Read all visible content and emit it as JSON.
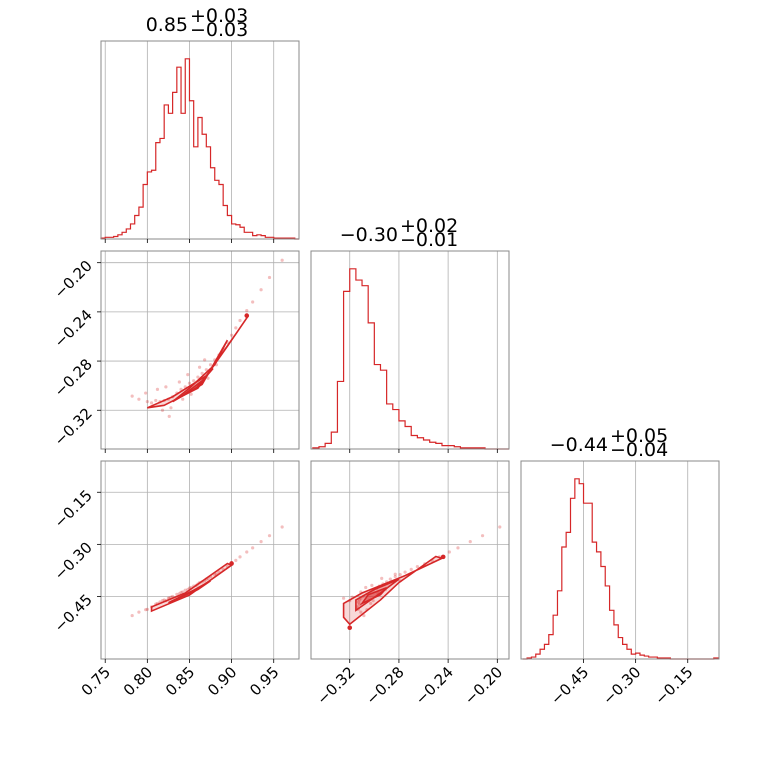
{
  "chart_data": {
    "type": "corner",
    "color": "#d62728",
    "parameters": [
      {
        "title_main": "0.85",
        "title_plus": "+0.03",
        "title_minus": "−0.03",
        "range": [
          0.745,
          0.98
        ],
        "ticks": [
          0.75,
          0.8,
          0.85,
          0.9,
          0.95
        ],
        "ticklabels": [
          "0.75",
          "0.80",
          "0.85",
          "0.90",
          "0.95"
        ],
        "hist_x": [
          0.745,
          0.75,
          0.755,
          0.76,
          0.765,
          0.77,
          0.775,
          0.78,
          0.785,
          0.79,
          0.795,
          0.8,
          0.805,
          0.81,
          0.815,
          0.82,
          0.825,
          0.83,
          0.835,
          0.84,
          0.845,
          0.85,
          0.855,
          0.86,
          0.865,
          0.87,
          0.875,
          0.88,
          0.885,
          0.89,
          0.895,
          0.9,
          0.905,
          0.91,
          0.915,
          0.92,
          0.925,
          0.93,
          0.935,
          0.94,
          0.945,
          0.95,
          0.955,
          0.96,
          0.965,
          0.97,
          0.975
        ],
        "hist_counts": [
          1,
          2,
          2,
          3,
          5,
          8,
          12,
          18,
          28,
          38,
          65,
          80,
          82,
          115,
          120,
          160,
          150,
          175,
          205,
          150,
          215,
          165,
          110,
          145,
          125,
          110,
          85,
          70,
          65,
          40,
          28,
          18,
          17,
          14,
          8,
          8,
          4,
          5,
          4,
          2,
          2,
          1,
          1,
          1,
          1,
          1,
          0
        ]
      },
      {
        "title_main": "−0.30",
        "title_plus": "+0.02",
        "title_minus": "−0.01",
        "range": [
          -0.3515,
          -0.1905
        ],
        "ticks": [
          -0.32,
          -0.28,
          -0.24,
          -0.2
        ],
        "ticklabels": [
          "−0.32",
          "−0.28",
          "−0.24",
          "−0.20"
        ],
        "hist_x": [
          -0.35,
          -0.345,
          -0.34,
          -0.335,
          -0.33,
          -0.325,
          -0.32,
          -0.315,
          -0.31,
          -0.305,
          -0.3,
          -0.295,
          -0.29,
          -0.285,
          -0.28,
          -0.275,
          -0.27,
          -0.265,
          -0.26,
          -0.255,
          -0.25,
          -0.245,
          -0.24,
          -0.235,
          -0.23,
          -0.225,
          -0.22,
          -0.215,
          -0.21,
          -0.205,
          -0.2,
          -0.195
        ],
        "hist_counts": [
          1,
          2,
          5,
          15,
          60,
          140,
          160,
          150,
          145,
          112,
          75,
          70,
          40,
          35,
          25,
          20,
          12,
          10,
          8,
          6,
          5,
          3,
          3,
          2,
          1,
          1,
          1,
          1,
          0,
          0,
          0,
          0
        ]
      },
      {
        "title_main": "−0.44",
        "title_plus": "+0.05",
        "title_minus": "−0.04",
        "range": [
          -0.63,
          -0.06
        ],
        "ticks": [
          -0.45,
          -0.3,
          -0.15
        ],
        "ticklabels": [
          "−0.45",
          "−0.30",
          "−0.15"
        ],
        "hist_x": [
          -0.625,
          -0.6125,
          -0.6,
          -0.5875,
          -0.575,
          -0.5625,
          -0.55,
          -0.5375,
          -0.525,
          -0.5125,
          -0.5,
          -0.4875,
          -0.475,
          -0.4625,
          -0.45,
          -0.4375,
          -0.425,
          -0.4125,
          -0.4,
          -0.3875,
          -0.375,
          -0.3625,
          -0.35,
          -0.3375,
          -0.325,
          -0.3125,
          -0.3,
          -0.2875,
          -0.275,
          -0.2625,
          -0.25,
          -0.2375,
          -0.225,
          -0.2125,
          -0.2,
          -0.1875,
          -0.175,
          -0.1625,
          -0.15,
          -0.1375,
          -0.125,
          -0.1125,
          -0.1,
          -0.0875,
          -0.075
        ],
        "hist_counts": [
          0,
          1,
          2,
          5,
          10,
          15,
          25,
          45,
          70,
          115,
          130,
          165,
          185,
          180,
          160,
          160,
          120,
          110,
          95,
          75,
          50,
          35,
          22,
          15,
          10,
          5,
          6,
          4,
          3,
          2,
          2,
          1,
          1,
          1,
          0,
          0,
          0,
          0,
          0,
          0,
          0,
          0,
          0,
          0,
          1
        ]
      }
    ],
    "scatter_points": [
      [
        0.782,
        -0.3085,
        -0.505
      ],
      [
        0.79,
        -0.311,
        -0.495
      ],
      [
        0.8,
        -0.313,
        -0.487
      ],
      [
        0.805,
        -0.314,
        -0.48
      ],
      [
        0.81,
        -0.312,
        -0.472
      ],
      [
        0.815,
        -0.313,
        -0.466
      ],
      [
        0.82,
        -0.312,
        -0.46
      ],
      [
        0.825,
        -0.311,
        -0.455
      ],
      [
        0.83,
        -0.309,
        -0.45
      ],
      [
        0.835,
        -0.306,
        -0.444
      ],
      [
        0.84,
        -0.303,
        -0.438
      ],
      [
        0.845,
        -0.301,
        -0.432
      ],
      [
        0.85,
        -0.298,
        -0.426
      ],
      [
        0.855,
        -0.296,
        -0.42
      ],
      [
        0.86,
        -0.293,
        -0.414
      ],
      [
        0.865,
        -0.29,
        -0.408
      ],
      [
        0.87,
        -0.287,
        -0.4
      ],
      [
        0.875,
        -0.283,
        -0.393
      ],
      [
        0.88,
        -0.279,
        -0.387
      ],
      [
        0.885,
        -0.275,
        -0.38
      ],
      [
        0.89,
        -0.27,
        -0.372
      ],
      [
        0.895,
        -0.265,
        -0.364
      ],
      [
        0.9,
        -0.259,
        -0.356
      ],
      [
        0.905,
        -0.253,
        -0.346
      ],
      [
        0.91,
        -0.247,
        -0.336
      ],
      [
        0.918,
        -0.239,
        -0.322
      ],
      [
        0.925,
        -0.232,
        -0.31
      ],
      [
        0.935,
        -0.222,
        -0.292
      ],
      [
        0.945,
        -0.212,
        -0.275
      ],
      [
        0.96,
        -0.198,
        -0.25
      ],
      [
        0.812,
        -0.303,
        -0.47
      ],
      [
        0.828,
        -0.318,
        -0.452
      ],
      [
        0.848,
        -0.291,
        -0.43
      ],
      [
        0.838,
        -0.297,
        -0.442
      ],
      [
        0.862,
        -0.285,
        -0.41
      ],
      [
        0.872,
        -0.294,
        -0.398
      ],
      [
        0.822,
        -0.301,
        -0.462
      ],
      [
        0.798,
        -0.306,
        -0.488
      ],
      [
        0.868,
        -0.279,
        -0.405
      ],
      [
        0.882,
        -0.283,
        -0.386
      ],
      [
        0.852,
        -0.307,
        -0.424
      ],
      [
        0.842,
        -0.311,
        -0.437
      ],
      [
        0.818,
        -0.32,
        -0.462
      ],
      [
        0.826,
        -0.325,
        -0.455
      ],
      [
        0.858,
        -0.302,
        -0.418
      ]
    ],
    "contours": {
      "p0_p1": [
        [
          [
            0.82,
            -0.316
          ],
          [
            0.86,
            -0.302
          ],
          [
            0.895,
            -0.268
          ],
          [
            0.92,
            -0.243
          ],
          [
            0.905,
            -0.258
          ],
          [
            0.87,
            -0.292
          ],
          [
            0.83,
            -0.309
          ],
          [
            0.8,
            -0.318
          ],
          [
            0.82,
            -0.316
          ]
        ],
        [
          [
            0.83,
            -0.313
          ],
          [
            0.865,
            -0.299
          ],
          [
            0.895,
            -0.263
          ],
          [
            0.88,
            -0.283
          ],
          [
            0.85,
            -0.302
          ],
          [
            0.83,
            -0.313
          ]
        ],
        [
          [
            0.842,
            -0.308
          ],
          [
            0.865,
            -0.296
          ],
          [
            0.878,
            -0.286
          ],
          [
            0.858,
            -0.302
          ],
          [
            0.842,
            -0.308
          ]
        ]
      ],
      "p0_p2": [
        [
          [
            0.805,
            -0.492
          ],
          [
            0.85,
            -0.446
          ],
          [
            0.9,
            -0.36
          ],
          [
            0.895,
            -0.355
          ],
          [
            0.845,
            -0.44
          ],
          [
            0.805,
            -0.48
          ],
          [
            0.805,
            -0.492
          ]
        ],
        [
          [
            0.825,
            -0.468
          ],
          [
            0.86,
            -0.43
          ],
          [
            0.875,
            -0.405
          ],
          [
            0.855,
            -0.432
          ],
          [
            0.825,
            -0.468
          ]
        ]
      ],
      "p1_p2": [
        [
          [
            -0.32,
            -0.53
          ],
          [
            -0.295,
            -0.46
          ],
          [
            -0.28,
            -0.41
          ],
          [
            -0.25,
            -0.335
          ],
          [
            -0.245,
            -0.34
          ],
          [
            -0.275,
            -0.39
          ],
          [
            -0.31,
            -0.44
          ],
          [
            -0.325,
            -0.47
          ],
          [
            -0.325,
            -0.51
          ],
          [
            -0.32,
            -0.53
          ]
        ],
        [
          [
            -0.315,
            -0.49
          ],
          [
            -0.295,
            -0.44
          ],
          [
            -0.28,
            -0.4
          ],
          [
            -0.3,
            -0.43
          ],
          [
            -0.315,
            -0.46
          ],
          [
            -0.315,
            -0.49
          ]
        ],
        [
          [
            -0.31,
            -0.47
          ],
          [
            -0.295,
            -0.445
          ],
          [
            -0.29,
            -0.425
          ],
          [
            -0.305,
            -0.445
          ],
          [
            -0.31,
            -0.47
          ]
        ]
      ]
    },
    "marker_points": {
      "p0_p1": [
        [
          0.918,
          -0.243
        ]
      ],
      "p0_p2": [
        [
          0.9,
          -0.355
        ]
      ],
      "p1_p2": [
        [
          -0.32,
          -0.54
        ],
        [
          -0.244,
          -0.336
        ]
      ]
    },
    "grid": true,
    "ylabel": "",
    "xlabel": ""
  }
}
